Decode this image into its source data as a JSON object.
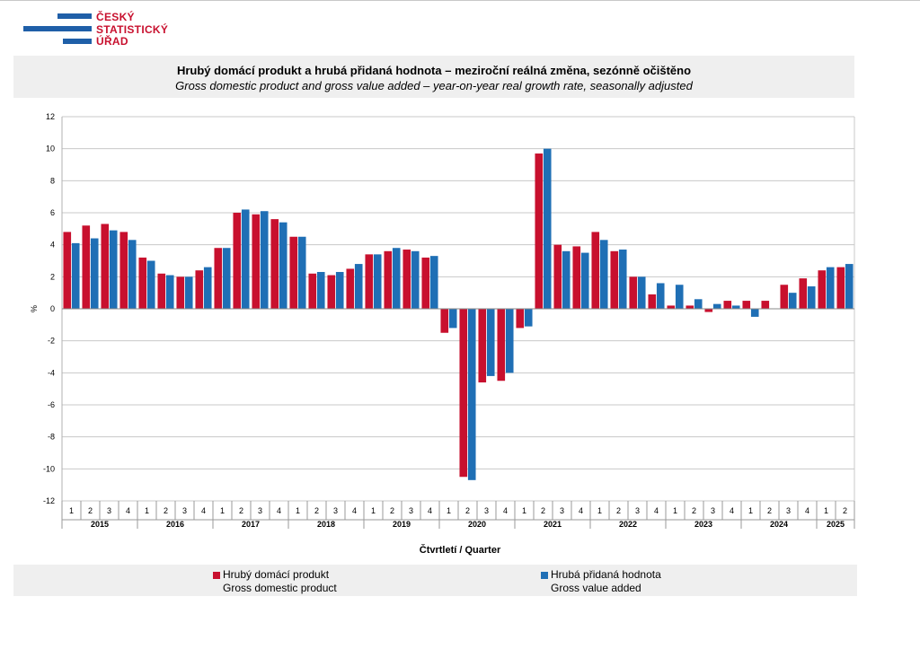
{
  "logo": {
    "lines": [
      "ČESKÝ",
      "STATISTICKÝ",
      "ÚŘAD"
    ]
  },
  "header": {
    "title": "Hrubý domácí produkt a hrubá přidaná hodnota – meziroční reálná změna, sezónně očištěno",
    "subtitle": "Gross domestic product and gross value added – year-on-year real growth rate, seasonally adjusted"
  },
  "colors": {
    "gdp": "#c8102e",
    "gva": "#1f6fb5"
  },
  "legend": [
    {
      "line1": "Hrubý domácí produkt",
      "line2": "Gross domestic product"
    },
    {
      "line1": "Hrubá přidaná hodnota",
      "line2": "Gross value added"
    }
  ],
  "chart_data": {
    "type": "bar",
    "xlabel": "Čtvrtletí / Quarter",
    "ylabel": "%",
    "ylim": [
      -12,
      12
    ],
    "yticks": [
      12,
      10,
      8,
      6,
      4,
      2,
      0,
      -2,
      -4,
      -6,
      -8,
      -10,
      -12
    ],
    "grid": true,
    "legend_position": "bottom",
    "years": [
      "2015",
      "2016",
      "2017",
      "2018",
      "2019",
      "2020",
      "2021",
      "2022",
      "2023",
      "2024",
      "2025"
    ],
    "categories": [
      "1",
      "2",
      "3",
      "4",
      "1",
      "2",
      "3",
      "4",
      "1",
      "2",
      "3",
      "4",
      "1",
      "2",
      "3",
      "4",
      "1",
      "2",
      "3",
      "4",
      "1",
      "2",
      "3",
      "4",
      "1",
      "2",
      "3",
      "4",
      "1",
      "2",
      "3",
      "4",
      "1",
      "2",
      "3",
      "4",
      "1",
      "2",
      "3",
      "4",
      "1",
      "2"
    ],
    "series": [
      {
        "name": "Hrubý domácí produkt",
        "values": [
          4.8,
          5.2,
          5.3,
          4.8,
          3.2,
          2.2,
          2.0,
          2.4,
          3.8,
          6.0,
          5.9,
          5.6,
          4.5,
          2.2,
          2.1,
          2.5,
          3.4,
          3.6,
          3.7,
          3.2,
          -1.5,
          -10.5,
          -4.6,
          -4.5,
          -1.2,
          9.7,
          4.0,
          3.9,
          4.8,
          3.6,
          2.0,
          0.9,
          0.2,
          0.2,
          -0.2,
          0.5,
          0.5,
          0.5,
          1.5,
          1.9,
          2.4,
          2.6
        ]
      },
      {
        "name": "Hrubá přidaná hodnota",
        "values": [
          4.1,
          4.4,
          4.9,
          4.3,
          3.0,
          2.1,
          2.0,
          2.6,
          3.8,
          6.2,
          6.1,
          5.4,
          4.5,
          2.3,
          2.3,
          2.8,
          3.4,
          3.8,
          3.6,
          3.3,
          -1.2,
          -10.7,
          -4.2,
          -4.0,
          -1.1,
          10.0,
          3.6,
          3.5,
          4.3,
          3.7,
          2.0,
          1.6,
          1.5,
          0.6,
          0.3,
          0.2,
          -0.5,
          0.0,
          1.0,
          1.4,
          2.6,
          2.8
        ]
      }
    ]
  }
}
